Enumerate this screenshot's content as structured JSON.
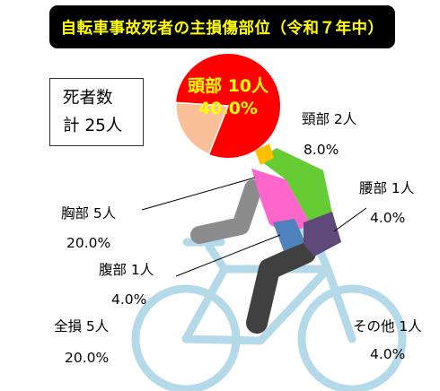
{
  "title": "自転車事故死者の主損傷部位（令和７年中）",
  "total": {
    "line1": "死者数",
    "line2": "計 25人"
  },
  "colors": {
    "head": "#ff0000",
    "neck": "#ffc000",
    "chest": "#ff66cc",
    "abdomen": "#4f81bd",
    "back": "#66cc33",
    "waist": "#5f497a",
    "whole_body": "#f9c09a",
    "bicycle": "#b4d9e8",
    "limbs": "#8c8c8c",
    "leg": "#404040"
  },
  "chart_data": {
    "type": "pie",
    "title": "自転車事故死者の主損傷部位（令和７年中）",
    "total_label": "死者数 計 25人",
    "slices": [
      {
        "part": "頭部",
        "count_label": "10人",
        "value": 10,
        "percent": "40.0%"
      },
      {
        "part": "全損",
        "count_label": "5人",
        "value": 5,
        "percent": "20.0%"
      },
      {
        "part": "胸部",
        "count_label": "5人",
        "value": 5,
        "percent": "20.0%"
      },
      {
        "part": "頸部",
        "count_label": "2人",
        "value": 2,
        "percent": "8.0%"
      },
      {
        "part": "腰部",
        "count_label": "1人",
        "value": 1,
        "percent": "4.0%"
      },
      {
        "part": "腹部",
        "count_label": "1人",
        "value": 1,
        "percent": "4.0%"
      },
      {
        "part": "その他",
        "count_label": "1人",
        "value": 1,
        "percent": "4.0%"
      }
    ]
  },
  "labels": {
    "head": {
      "l1": "頭部 10人",
      "l2": "40.0%"
    },
    "neck": {
      "l1": "頸部 2人",
      "l2": "8.0%"
    },
    "waist": {
      "l1": "腰部 1人",
      "l2": "4.0%"
    },
    "chest": {
      "l1": "胸部 5人",
      "l2": "20.0%"
    },
    "abdomen": {
      "l1": "腹部 1人",
      "l2": "4.0%"
    },
    "whole": {
      "l1": "全損 5人",
      "l2": "20.0%"
    },
    "other": {
      "l1": "その他 1人",
      "l2": "4.0%"
    }
  }
}
